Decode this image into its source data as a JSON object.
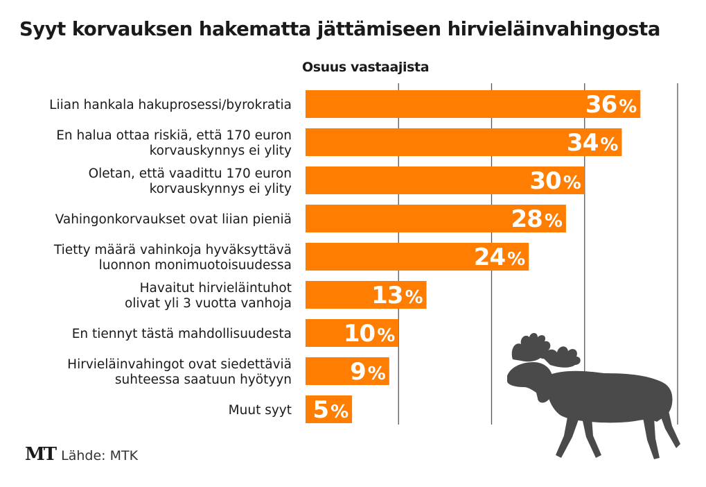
{
  "title": "Syyt korvauksen hakematta jättämiseen hirvieläinvahingosta",
  "subtitle": "Osuus vastaajista",
  "footer": {
    "logo": "MT",
    "source": "Lähde: MTK"
  },
  "colors": {
    "bar": "#ff7d00",
    "gridline": "#555555",
    "moose": "#4a4a4a",
    "text": "#1a1a1a"
  },
  "decoration": {
    "icon": "moose-icon"
  },
  "chart_data": {
    "type": "bar",
    "orientation": "horizontal",
    "title": "Syyt korvauksen hakematta jättämiseen hirvieläinvahingosta",
    "xlabel": "Osuus vastaajista",
    "unit": "%",
    "xlim": [
      0,
      40
    ],
    "gridlines": [
      10,
      20,
      30,
      40
    ],
    "categories": [
      [
        "Liian hankala hakuprosessi/byrokratia"
      ],
      [
        "En halua ottaa riskiä, että 170 euron",
        "korvauskynnys ei ylity"
      ],
      [
        "Oletan, että vaadittu 170 euron",
        "korvauskynnys ei ylity"
      ],
      [
        "Vahingonkorvaukset ovat liian pieniä"
      ],
      [
        "Tietty määrä vahinkoja hyväksyttävä",
        "luonnon monimuotoisuudessa"
      ],
      [
        "Havaitut hirvieläintuhot",
        "olivat yli 3 vuotta vanhoja"
      ],
      [
        "En tiennyt tästä mahdollisuudesta"
      ],
      [
        "Hirvieläinvahingot ovat siedettäviä",
        "suhteessa saatuun hyötyyn"
      ],
      [
        "Muut syyt"
      ]
    ],
    "values": [
      36,
      34,
      30,
      28,
      24,
      13,
      10,
      9,
      5
    ]
  }
}
